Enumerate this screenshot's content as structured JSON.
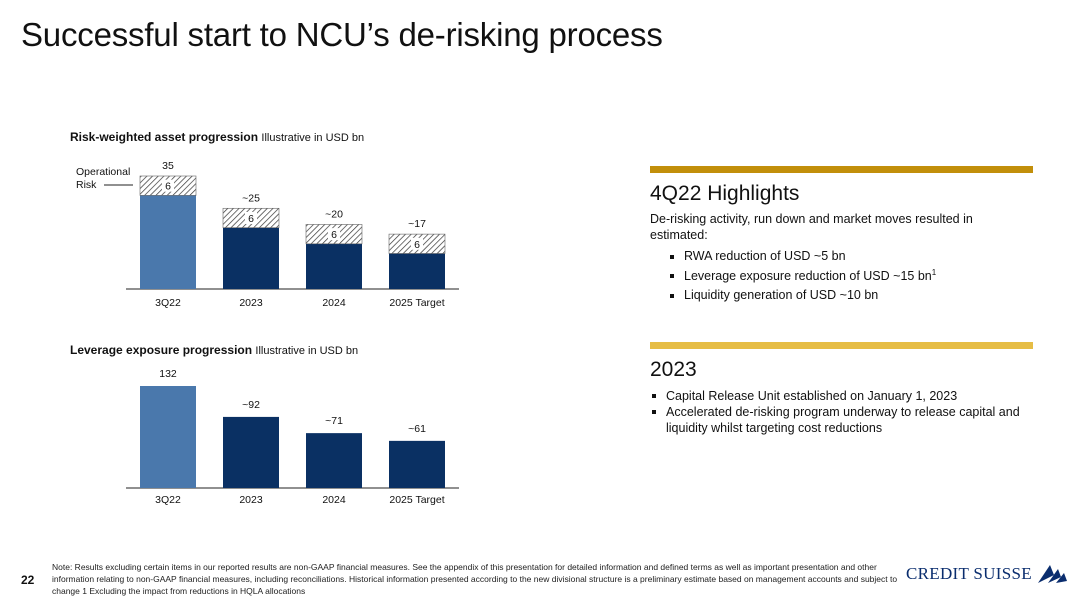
{
  "page": {
    "title": "Successful start to NCU’s de-risking process",
    "page_number": "22",
    "brand": "CREDIT SUISSE",
    "note": "Note: Results excluding certain items in our reported results are non-GAAP financial measures. See the appendix of this presentation for detailed information and defined terms as well as important presentation and other information relating to non-GAAP financial measures, including reconciliations. Historical information presented according to the new divisional structure is a preliminary estimate based on management accounts and subject to change     1 Excluding the impact from reductions in HQLA allocations"
  },
  "colors": {
    "light_blue": "#4a78ac",
    "dark_blue": "#0a3063",
    "gold": "#c28f0a",
    "light_gold": "#e6bd45",
    "brand_blue": "#0a2d6e"
  },
  "highlights": {
    "title": "4Q22 Highlights",
    "intro": "De-risking activity, run down and market moves resulted in estimated:",
    "bullets": [
      {
        "text": "RWA reduction of USD ~5 bn",
        "sup": ""
      },
      {
        "text": "Leverage exposure reduction of USD ~15 bn",
        "sup": "1"
      },
      {
        "text": "Liquidity generation of USD ~10 bn",
        "sup": ""
      }
    ]
  },
  "year2023": {
    "title": "2023",
    "bullets": [
      "Capital Release Unit established on January 1, 2023",
      "Accelerated de-risking program underway to release capital and liquidity whilst targeting cost reductions"
    ]
  },
  "chart_data": [
    {
      "type": "bar",
      "title": "Risk-weighted asset progression",
      "subtitle": "Illustrative in USD bn",
      "categories": [
        "3Q22",
        "2023",
        "2024",
        "2025 Target"
      ],
      "series": [
        {
          "name": "",
          "values": [
            29,
            19,
            14,
            11
          ]
        },
        {
          "name": "Operational Risk",
          "values": [
            6,
            6,
            6,
            6
          ]
        }
      ],
      "total_labels": [
        "35",
        "~25",
        "~20",
        "~17"
      ],
      "segment_labels": [
        "6",
        "6",
        "6",
        "6"
      ],
      "legend_annotation": "Operational Risk",
      "ylim": [
        0,
        35
      ]
    },
    {
      "type": "bar",
      "title": "Leverage exposure progression",
      "subtitle": "Illustrative in USD bn",
      "categories": [
        "3Q22",
        "2023",
        "2024",
        "2025 Target"
      ],
      "values": [
        132,
        92,
        71,
        61
      ],
      "value_labels": [
        "132",
        "~92",
        "~71",
        "~61"
      ],
      "ylim": [
        0,
        132
      ]
    }
  ]
}
